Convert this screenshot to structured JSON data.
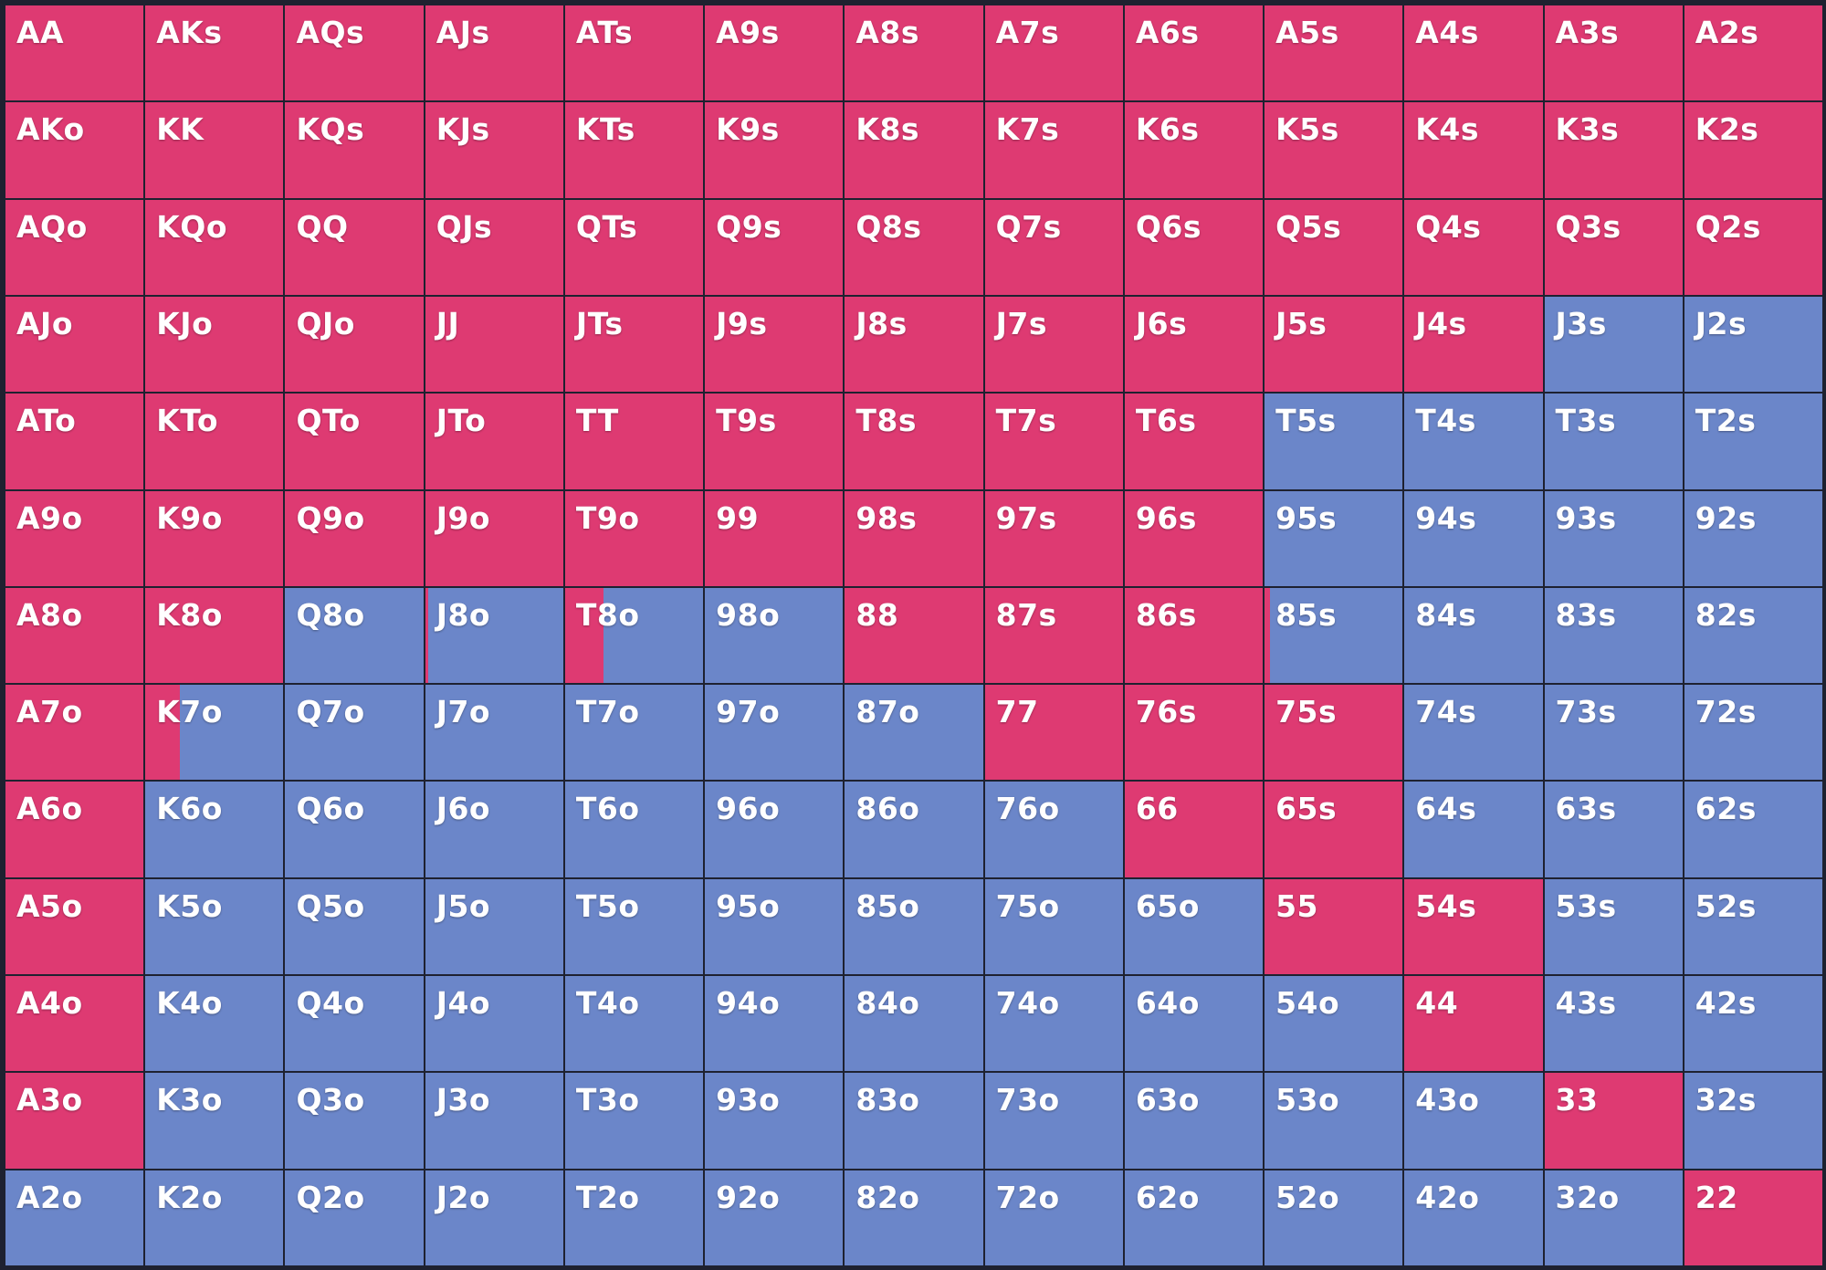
{
  "colors": {
    "raise": "#de3a72",
    "fold": "#6b86c9",
    "grid_line": "#1e2130"
  },
  "grid": {
    "rows": [
      [
        {
          "hand": "AA",
          "raise": 1
        },
        {
          "hand": "AKs",
          "raise": 1
        },
        {
          "hand": "AQs",
          "raise": 1
        },
        {
          "hand": "AJs",
          "raise": 1
        },
        {
          "hand": "ATs",
          "raise": 1
        },
        {
          "hand": "A9s",
          "raise": 1
        },
        {
          "hand": "A8s",
          "raise": 1
        },
        {
          "hand": "A7s",
          "raise": 1
        },
        {
          "hand": "A6s",
          "raise": 1
        },
        {
          "hand": "A5s",
          "raise": 1
        },
        {
          "hand": "A4s",
          "raise": 1
        },
        {
          "hand": "A3s",
          "raise": 1
        },
        {
          "hand": "A2s",
          "raise": 1
        }
      ],
      [
        {
          "hand": "AKo",
          "raise": 1
        },
        {
          "hand": "KK",
          "raise": 1
        },
        {
          "hand": "KQs",
          "raise": 1
        },
        {
          "hand": "KJs",
          "raise": 1
        },
        {
          "hand": "KTs",
          "raise": 1
        },
        {
          "hand": "K9s",
          "raise": 1
        },
        {
          "hand": "K8s",
          "raise": 1
        },
        {
          "hand": "K7s",
          "raise": 1
        },
        {
          "hand": "K6s",
          "raise": 1
        },
        {
          "hand": "K5s",
          "raise": 1
        },
        {
          "hand": "K4s",
          "raise": 1
        },
        {
          "hand": "K3s",
          "raise": 1
        },
        {
          "hand": "K2s",
          "raise": 1
        }
      ],
      [
        {
          "hand": "AQo",
          "raise": 1
        },
        {
          "hand": "KQo",
          "raise": 1
        },
        {
          "hand": "QQ",
          "raise": 1
        },
        {
          "hand": "QJs",
          "raise": 1
        },
        {
          "hand": "QTs",
          "raise": 1
        },
        {
          "hand": "Q9s",
          "raise": 1
        },
        {
          "hand": "Q8s",
          "raise": 1
        },
        {
          "hand": "Q7s",
          "raise": 1
        },
        {
          "hand": "Q6s",
          "raise": 1
        },
        {
          "hand": "Q5s",
          "raise": 1
        },
        {
          "hand": "Q4s",
          "raise": 1
        },
        {
          "hand": "Q3s",
          "raise": 1
        },
        {
          "hand": "Q2s",
          "raise": 1
        }
      ],
      [
        {
          "hand": "AJo",
          "raise": 1
        },
        {
          "hand": "KJo",
          "raise": 1
        },
        {
          "hand": "QJo",
          "raise": 1
        },
        {
          "hand": "JJ",
          "raise": 1
        },
        {
          "hand": "JTs",
          "raise": 1
        },
        {
          "hand": "J9s",
          "raise": 1
        },
        {
          "hand": "J8s",
          "raise": 1
        },
        {
          "hand": "J7s",
          "raise": 1
        },
        {
          "hand": "J6s",
          "raise": 1
        },
        {
          "hand": "J5s",
          "raise": 1
        },
        {
          "hand": "J4s",
          "raise": 1
        },
        {
          "hand": "J3s",
          "raise": 0
        },
        {
          "hand": "J2s",
          "raise": 0
        }
      ],
      [
        {
          "hand": "ATo",
          "raise": 1
        },
        {
          "hand": "KTo",
          "raise": 1
        },
        {
          "hand": "QTo",
          "raise": 1
        },
        {
          "hand": "JTo",
          "raise": 1
        },
        {
          "hand": "TT",
          "raise": 1
        },
        {
          "hand": "T9s",
          "raise": 1
        },
        {
          "hand": "T8s",
          "raise": 1
        },
        {
          "hand": "T7s",
          "raise": 1
        },
        {
          "hand": "T6s",
          "raise": 1
        },
        {
          "hand": "T5s",
          "raise": 0
        },
        {
          "hand": "T4s",
          "raise": 0
        },
        {
          "hand": "T3s",
          "raise": 0
        },
        {
          "hand": "T2s",
          "raise": 0
        }
      ],
      [
        {
          "hand": "A9o",
          "raise": 1
        },
        {
          "hand": "K9o",
          "raise": 1
        },
        {
          "hand": "Q9o",
          "raise": 1
        },
        {
          "hand": "J9o",
          "raise": 1
        },
        {
          "hand": "T9o",
          "raise": 1
        },
        {
          "hand": "99",
          "raise": 1
        },
        {
          "hand": "98s",
          "raise": 1
        },
        {
          "hand": "97s",
          "raise": 1
        },
        {
          "hand": "96s",
          "raise": 1
        },
        {
          "hand": "95s",
          "raise": 0
        },
        {
          "hand": "94s",
          "raise": 0
        },
        {
          "hand": "93s",
          "raise": 0
        },
        {
          "hand": "92s",
          "raise": 0
        }
      ],
      [
        {
          "hand": "A8o",
          "raise": 1
        },
        {
          "hand": "K8o",
          "raise": 1
        },
        {
          "hand": "Q8o",
          "raise": 0
        },
        {
          "hand": "J8o",
          "raise": 0.02
        },
        {
          "hand": "T8o",
          "raise": 0.28
        },
        {
          "hand": "98o",
          "raise": 0
        },
        {
          "hand": "88",
          "raise": 1
        },
        {
          "hand": "87s",
          "raise": 1
        },
        {
          "hand": "86s",
          "raise": 1
        },
        {
          "hand": "85s",
          "raise": 0.04
        },
        {
          "hand": "84s",
          "raise": 0
        },
        {
          "hand": "83s",
          "raise": 0
        },
        {
          "hand": "82s",
          "raise": 0
        }
      ],
      [
        {
          "hand": "A7o",
          "raise": 1
        },
        {
          "hand": "K7o",
          "raise": 0.25
        },
        {
          "hand": "Q7o",
          "raise": 0
        },
        {
          "hand": "J7o",
          "raise": 0
        },
        {
          "hand": "T7o",
          "raise": 0
        },
        {
          "hand": "97o",
          "raise": 0
        },
        {
          "hand": "87o",
          "raise": 0
        },
        {
          "hand": "77",
          "raise": 1
        },
        {
          "hand": "76s",
          "raise": 1
        },
        {
          "hand": "75s",
          "raise": 1
        },
        {
          "hand": "74s",
          "raise": 0
        },
        {
          "hand": "73s",
          "raise": 0
        },
        {
          "hand": "72s",
          "raise": 0
        }
      ],
      [
        {
          "hand": "A6o",
          "raise": 1
        },
        {
          "hand": "K6o",
          "raise": 0
        },
        {
          "hand": "Q6o",
          "raise": 0
        },
        {
          "hand": "J6o",
          "raise": 0
        },
        {
          "hand": "T6o",
          "raise": 0
        },
        {
          "hand": "96o",
          "raise": 0
        },
        {
          "hand": "86o",
          "raise": 0
        },
        {
          "hand": "76o",
          "raise": 0
        },
        {
          "hand": "66",
          "raise": 1
        },
        {
          "hand": "65s",
          "raise": 1
        },
        {
          "hand": "64s",
          "raise": 0
        },
        {
          "hand": "63s",
          "raise": 0
        },
        {
          "hand": "62s",
          "raise": 0
        }
      ],
      [
        {
          "hand": "A5o",
          "raise": 1
        },
        {
          "hand": "K5o",
          "raise": 0
        },
        {
          "hand": "Q5o",
          "raise": 0
        },
        {
          "hand": "J5o",
          "raise": 0
        },
        {
          "hand": "T5o",
          "raise": 0
        },
        {
          "hand": "95o",
          "raise": 0
        },
        {
          "hand": "85o",
          "raise": 0
        },
        {
          "hand": "75o",
          "raise": 0
        },
        {
          "hand": "65o",
          "raise": 0
        },
        {
          "hand": "55",
          "raise": 1
        },
        {
          "hand": "54s",
          "raise": 1
        },
        {
          "hand": "53s",
          "raise": 0
        },
        {
          "hand": "52s",
          "raise": 0
        }
      ],
      [
        {
          "hand": "A4o",
          "raise": 1
        },
        {
          "hand": "K4o",
          "raise": 0
        },
        {
          "hand": "Q4o",
          "raise": 0
        },
        {
          "hand": "J4o",
          "raise": 0
        },
        {
          "hand": "T4o",
          "raise": 0
        },
        {
          "hand": "94o",
          "raise": 0
        },
        {
          "hand": "84o",
          "raise": 0
        },
        {
          "hand": "74o",
          "raise": 0
        },
        {
          "hand": "64o",
          "raise": 0
        },
        {
          "hand": "54o",
          "raise": 0
        },
        {
          "hand": "44",
          "raise": 1
        },
        {
          "hand": "43s",
          "raise": 0
        },
        {
          "hand": "42s",
          "raise": 0
        }
      ],
      [
        {
          "hand": "A3o",
          "raise": 1
        },
        {
          "hand": "K3o",
          "raise": 0
        },
        {
          "hand": "Q3o",
          "raise": 0
        },
        {
          "hand": "J3o",
          "raise": 0
        },
        {
          "hand": "T3o",
          "raise": 0
        },
        {
          "hand": "93o",
          "raise": 0
        },
        {
          "hand": "83o",
          "raise": 0
        },
        {
          "hand": "73o",
          "raise": 0
        },
        {
          "hand": "63o",
          "raise": 0
        },
        {
          "hand": "53o",
          "raise": 0
        },
        {
          "hand": "43o",
          "raise": 0
        },
        {
          "hand": "33",
          "raise": 1
        },
        {
          "hand": "32s",
          "raise": 0
        }
      ],
      [
        {
          "hand": "A2o",
          "raise": 0
        },
        {
          "hand": "K2o",
          "raise": 0
        },
        {
          "hand": "Q2o",
          "raise": 0
        },
        {
          "hand": "J2o",
          "raise": 0
        },
        {
          "hand": "T2o",
          "raise": 0
        },
        {
          "hand": "92o",
          "raise": 0
        },
        {
          "hand": "82o",
          "raise": 0
        },
        {
          "hand": "72o",
          "raise": 0
        },
        {
          "hand": "62o",
          "raise": 0
        },
        {
          "hand": "52o",
          "raise": 0
        },
        {
          "hand": "42o",
          "raise": 0
        },
        {
          "hand": "32o",
          "raise": 0
        },
        {
          "hand": "22",
          "raise": 1
        }
      ]
    ]
  }
}
